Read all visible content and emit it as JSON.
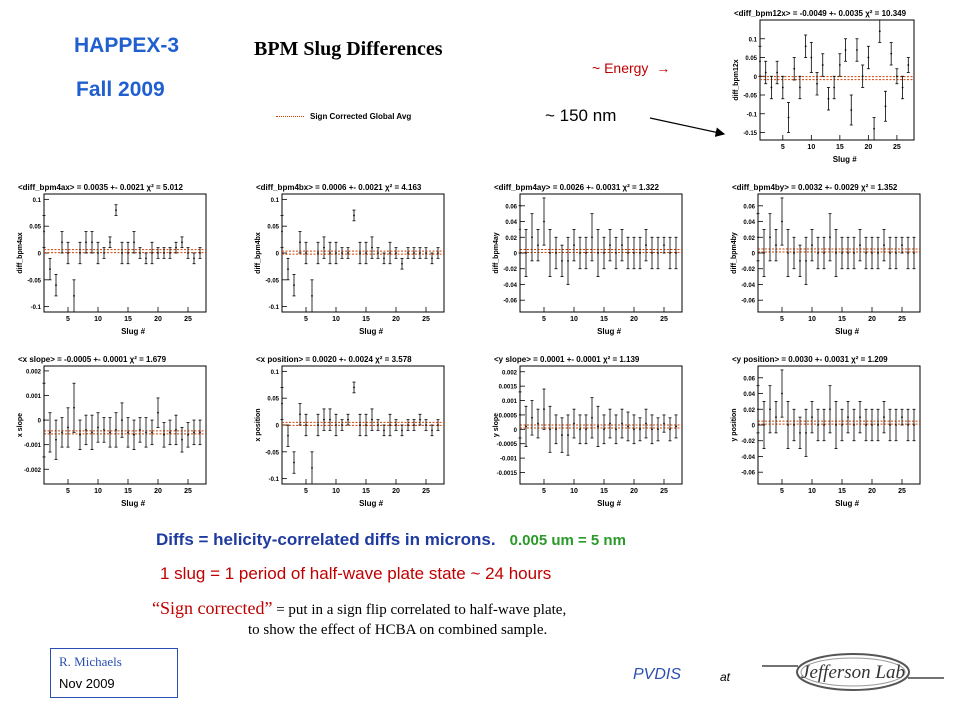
{
  "header": {
    "title": "HAPPEX-3",
    "season": "Fall   2009",
    "main_title": "BPM Slug Differences"
  },
  "annotations": {
    "energy": "~ Energy",
    "energy_arrow": "→",
    "nm": "~ 150 nm",
    "legend_label": "Sign Corrected Global Avg"
  },
  "notes": {
    "diffs": "Diffs =  helicity-correlated  diffs  in  microns.",
    "unit": "0.005 um  =  5 nm",
    "slug": "1 slug  =  1 period of half-wave plate state  ~  24 hours",
    "sign_quote": "“Sign corrected”",
    "sign_rest": "  =  put in a sign flip  correlated to half-wave plate,",
    "sign_line2": "to show  the  effect  of  HCBA  on  combined  sample."
  },
  "footer": {
    "author": "R.  Michaels",
    "date": "Nov 2009",
    "pvdis": "PVDIS",
    "at": "at",
    "logo_text": "Jefferson Lab"
  },
  "colors": {
    "header_blue": "#1f5fd0",
    "avg_line": "#d04000",
    "note_red": "#c00000",
    "note_green": "#2a9a2a"
  },
  "chart_data": [
    {
      "type": "scatter",
      "title": "<diff_bpm12x> = -0.0049 +- 0.0035   χ² = 10.349",
      "xlabel": "Slug #",
      "ylabel": "diff_bpm12x",
      "xticks": [
        5,
        10,
        15,
        20,
        25
      ],
      "yticks": [
        "0.1",
        "0.05",
        "0",
        "-0.05",
        "-0.1",
        "-0.15"
      ],
      "ytick_values": [
        0.1,
        0.05,
        0,
        -0.05,
        -0.1,
        -0.15
      ],
      "xlim": [
        1,
        28
      ],
      "ylim": [
        -0.17,
        0.15
      ],
      "avg": -0.0049,
      "x": [
        1,
        2,
        3,
        4,
        5,
        6,
        7,
        8,
        9,
        10,
        11,
        12,
        13,
        14,
        15,
        16,
        17,
        18,
        19,
        20,
        21,
        22,
        23,
        24,
        25,
        26,
        27
      ],
      "y": [
        0.04,
        0.01,
        -0.03,
        0.01,
        -0.03,
        -0.11,
        0.02,
        -0.03,
        0.08,
        0.05,
        -0.02,
        0.03,
        -0.06,
        -0.03,
        0.03,
        0.07,
        -0.09,
        0.07,
        0.0,
        0.05,
        -0.14,
        0.12,
        -0.08,
        0.06,
        0.0,
        -0.03,
        0.03
      ],
      "err": [
        0.04,
        0.03,
        0.03,
        0.03,
        0.03,
        0.04,
        0.03,
        0.03,
        0.03,
        0.04,
        0.03,
        0.03,
        0.03,
        0.03,
        0.03,
        0.03,
        0.04,
        0.03,
        0.03,
        0.03,
        0.03,
        0.03,
        0.04,
        0.03,
        0.02,
        0.03,
        0.02
      ]
    },
    {
      "type": "scatter",
      "title": "<diff_bpm4ax> = 0.0035 +- 0.0021   χ² = 5.012",
      "xlabel": "Slug #",
      "ylabel": "diff_bpm4ax",
      "xticks": [
        5,
        10,
        15,
        20,
        25
      ],
      "yticks": [
        "0.1",
        "0.05",
        "0",
        "-0.05",
        "-0.1"
      ],
      "ytick_values": [
        0.1,
        0.05,
        0,
        -0.05,
        -0.1
      ],
      "xlim": [
        1,
        28
      ],
      "ylim": [
        -0.11,
        0.11
      ],
      "avg": 0.0035,
      "x": [
        1,
        2,
        3,
        4,
        5,
        6,
        7,
        8,
        9,
        10,
        11,
        12,
        13,
        14,
        15,
        16,
        17,
        18,
        19,
        20,
        21,
        22,
        23,
        24,
        25,
        26,
        27
      ],
      "y": [
        0.04,
        -0.03,
        -0.06,
        0.02,
        0.0,
        -0.08,
        0.0,
        0.02,
        0.02,
        0.0,
        0.0,
        0.02,
        0.08,
        0.0,
        0.0,
        0.02,
        0.0,
        -0.01,
        0.0,
        0.0,
        0.0,
        0.0,
        0.01,
        0.02,
        0.0,
        -0.01,
        0.0
      ],
      "err": [
        0.03,
        0.02,
        0.02,
        0.02,
        0.02,
        0.03,
        0.02,
        0.02,
        0.02,
        0.02,
        0.01,
        0.01,
        0.01,
        0.02,
        0.02,
        0.02,
        0.01,
        0.01,
        0.02,
        0.01,
        0.01,
        0.01,
        0.01,
        0.01,
        0.01,
        0.01,
        0.01
      ]
    },
    {
      "type": "scatter",
      "title": "<diff_bpm4bx> = 0.0006 +- 0.0021   χ² = 4.163",
      "xlabel": "Slug #",
      "ylabel": "diff_bpm4bx",
      "xticks": [
        5,
        10,
        15,
        20,
        25
      ],
      "yticks": [
        "0.1",
        "0.05",
        "0",
        "-0.05",
        "-0.1"
      ],
      "ytick_values": [
        0.1,
        0.05,
        0,
        -0.05,
        -0.1
      ],
      "xlim": [
        1,
        28
      ],
      "ylim": [
        -0.11,
        0.11
      ],
      "avg": 0.0006,
      "x": [
        1,
        2,
        3,
        4,
        5,
        6,
        7,
        8,
        9,
        10,
        11,
        12,
        13,
        14,
        15,
        16,
        17,
        18,
        19,
        20,
        21,
        22,
        23,
        24,
        25,
        26,
        27
      ],
      "y": [
        0.04,
        -0.03,
        -0.06,
        0.02,
        0.0,
        -0.08,
        0.0,
        0.01,
        0.0,
        0.0,
        0.0,
        0.0,
        0.07,
        0.0,
        0.0,
        0.01,
        0.0,
        -0.01,
        0.0,
        0.0,
        -0.02,
        0.0,
        0.0,
        0.0,
        0.0,
        -0.01,
        0.0
      ],
      "err": [
        0.03,
        0.02,
        0.02,
        0.02,
        0.02,
        0.03,
        0.02,
        0.02,
        0.02,
        0.02,
        0.01,
        0.01,
        0.01,
        0.02,
        0.02,
        0.02,
        0.01,
        0.01,
        0.02,
        0.01,
        0.01,
        0.01,
        0.01,
        0.01,
        0.01,
        0.01,
        0.01
      ]
    },
    {
      "type": "scatter",
      "title": "<diff_bpm4ay> = 0.0026 +- 0.0031   χ² = 1.322",
      "xlabel": "Slug #",
      "ylabel": "diff_bpm4ay",
      "xticks": [
        5,
        10,
        15,
        20,
        25
      ],
      "yticks": [
        "0.06",
        "0.04",
        "0.02",
        "0",
        "-0.02",
        "-0.04",
        "-0.06"
      ],
      "ytick_values": [
        0.06,
        0.04,
        0.02,
        0,
        -0.02,
        -0.04,
        -0.06
      ],
      "xlim": [
        1,
        28
      ],
      "ylim": [
        -0.075,
        0.075
      ],
      "avg": 0.0026,
      "x": [
        1,
        2,
        3,
        4,
        5,
        6,
        7,
        8,
        9,
        10,
        11,
        12,
        13,
        14,
        15,
        16,
        17,
        18,
        19,
        20,
        21,
        22,
        23,
        24,
        25,
        26,
        27
      ],
      "y": [
        0.03,
        0.0,
        0.02,
        0.01,
        0.04,
        0.0,
        0.0,
        -0.01,
        -0.01,
        0.01,
        0.0,
        0.0,
        0.02,
        0.0,
        0.0,
        0.01,
        0.0,
        0.01,
        0.0,
        0.0,
        0.0,
        0.01,
        0.0,
        0.0,
        0.01,
        0.0,
        0.0
      ],
      "err": [
        0.03,
        0.03,
        0.03,
        0.02,
        0.03,
        0.03,
        0.02,
        0.02,
        0.03,
        0.02,
        0.02,
        0.02,
        0.03,
        0.03,
        0.02,
        0.02,
        0.02,
        0.02,
        0.02,
        0.02,
        0.02,
        0.02,
        0.02,
        0.02,
        0.01,
        0.02,
        0.02
      ]
    },
    {
      "type": "scatter",
      "title": "<diff_bpm4by> = 0.0032 +- 0.0029   χ² = 1.352",
      "xlabel": "Slug #",
      "ylabel": "diff_bpm4by",
      "xticks": [
        5,
        10,
        15,
        20,
        25
      ],
      "yticks": [
        "0.06",
        "0.04",
        "0.02",
        "0",
        "-0.02",
        "-0.04",
        "-0.06"
      ],
      "ytick_values": [
        0.06,
        0.04,
        0.02,
        0,
        -0.02,
        -0.04,
        -0.06
      ],
      "xlim": [
        1,
        28
      ],
      "ylim": [
        -0.075,
        0.075
      ],
      "avg": 0.0032,
      "x": [
        1,
        2,
        3,
        4,
        5,
        6,
        7,
        8,
        9,
        10,
        11,
        12,
        13,
        14,
        15,
        16,
        17,
        18,
        19,
        20,
        21,
        22,
        23,
        24,
        25,
        26,
        27
      ],
      "y": [
        0.02,
        0.0,
        0.02,
        0.01,
        0.04,
        0.0,
        0.0,
        -0.01,
        -0.01,
        0.01,
        0.0,
        0.0,
        0.02,
        0.0,
        0.0,
        0.0,
        0.0,
        0.01,
        0.0,
        0.0,
        0.0,
        0.01,
        0.0,
        0.0,
        0.01,
        0.0,
        0.0
      ],
      "err": [
        0.03,
        0.03,
        0.03,
        0.02,
        0.03,
        0.03,
        0.02,
        0.02,
        0.03,
        0.02,
        0.02,
        0.02,
        0.03,
        0.03,
        0.02,
        0.02,
        0.02,
        0.02,
        0.02,
        0.02,
        0.02,
        0.02,
        0.02,
        0.02,
        0.01,
        0.02,
        0.02
      ]
    },
    {
      "type": "scatter",
      "title": "<x slope> = -0.0005 +- 0.0001   χ² = 1.679",
      "xlabel": "Slug #",
      "ylabel": "x slope",
      "xticks": [
        5,
        10,
        15,
        20,
        25
      ],
      "yticks": [
        "0.002",
        "0.001",
        "0",
        "-0.001",
        "-0.002"
      ],
      "ytick_values": [
        0.002,
        0.001,
        0,
        -0.001,
        -0.002
      ],
      "xlim": [
        1,
        28
      ],
      "ylim": [
        -0.0026,
        0.0022
      ],
      "avg": -0.0005,
      "x": [
        1,
        2,
        3,
        4,
        5,
        6,
        7,
        8,
        9,
        10,
        11,
        12,
        13,
        14,
        15,
        16,
        17,
        18,
        19,
        20,
        21,
        22,
        23,
        24,
        25,
        26,
        27
      ],
      "y": [
        0.0,
        -0.0005,
        -0.0008,
        -0.0005,
        -0.0003,
        0.0005,
        -0.0006,
        -0.0004,
        -0.0005,
        -0.0003,
        -0.0004,
        -0.0005,
        -0.0004,
        0.0,
        -0.0005,
        -0.0006,
        -0.0004,
        -0.0005,
        -0.0005,
        0.0003,
        -0.0006,
        -0.0005,
        -0.0004,
        -0.0008,
        -0.0006,
        -0.0005,
        -0.0005
      ],
      "err": [
        0.0015,
        0.0008,
        0.0008,
        0.0006,
        0.0008,
        0.001,
        0.0006,
        0.0006,
        0.0007,
        0.0006,
        0.0005,
        0.0006,
        0.0007,
        0.0007,
        0.0006,
        0.0006,
        0.0005,
        0.0006,
        0.0005,
        0.0006,
        0.0005,
        0.0005,
        0.0006,
        0.0005,
        0.0005,
        0.0005,
        0.0005
      ]
    },
    {
      "type": "scatter",
      "title": "<x position> = 0.0020 +- 0.0024   χ² = 3.578",
      "xlabel": "Slug #",
      "ylabel": "x position",
      "xticks": [
        5,
        10,
        15,
        20,
        25
      ],
      "yticks": [
        "0.1",
        "0.05",
        "0",
        "-0.05",
        "-0.1"
      ],
      "ytick_values": [
        0.1,
        0.05,
        0,
        -0.05,
        -0.1
      ],
      "xlim": [
        1,
        28
      ],
      "ylim": [
        -0.11,
        0.11
      ],
      "avg": 0.002,
      "x": [
        1,
        2,
        3,
        4,
        5,
        6,
        7,
        8,
        9,
        10,
        11,
        12,
        13,
        14,
        15,
        16,
        17,
        18,
        19,
        20,
        21,
        22,
        23,
        24,
        25,
        26,
        27
      ],
      "y": [
        0.04,
        -0.02,
        -0.07,
        0.02,
        0.0,
        -0.08,
        0.0,
        0.01,
        0.01,
        0.0,
        0.0,
        0.01,
        0.07,
        0.0,
        0.0,
        0.01,
        0.0,
        -0.01,
        0.0,
        0.0,
        -0.01,
        0.0,
        0.0,
        0.01,
        0.0,
        -0.01,
        0.0
      ],
      "err": [
        0.03,
        0.02,
        0.02,
        0.02,
        0.02,
        0.03,
        0.02,
        0.02,
        0.02,
        0.02,
        0.01,
        0.01,
        0.01,
        0.02,
        0.02,
        0.02,
        0.01,
        0.01,
        0.02,
        0.01,
        0.01,
        0.01,
        0.01,
        0.01,
        0.01,
        0.01,
        0.01
      ]
    },
    {
      "type": "scatter",
      "title": "<y slope> = 0.0001 +- 0.0001   χ² = 1.139",
      "xlabel": "Slug #",
      "ylabel": "y slope",
      "xticks": [
        5,
        10,
        15,
        20,
        25
      ],
      "yticks": [
        "0.002",
        "0.0015",
        "0.001",
        "0.0005",
        "0",
        "-0.0005",
        "-0.001",
        "-0.0015"
      ],
      "ytick_values": [
        0.002,
        0.0015,
        0.001,
        0.0005,
        0,
        -0.0005,
        -0.001,
        -0.0015
      ],
      "xlim": [
        1,
        28
      ],
      "ylim": [
        -0.0019,
        0.0022
      ],
      "avg": 0.0001,
      "x": [
        1,
        2,
        3,
        4,
        5,
        6,
        7,
        8,
        9,
        10,
        11,
        12,
        13,
        14,
        15,
        16,
        17,
        18,
        19,
        20,
        21,
        22,
        23,
        24,
        25,
        26,
        27
      ],
      "y": [
        0.0005,
        0.0001,
        0.0004,
        0.0002,
        0.0007,
        0.0,
        0.0,
        -0.0002,
        -0.0002,
        0.0002,
        0.0,
        0.0,
        0.0004,
        0.0001,
        0.0,
        0.0002,
        0.0,
        0.0002,
        0.0001,
        0.0,
        0.0,
        0.0002,
        0.0,
        0.0,
        0.0002,
        0.0,
        0.0001
      ],
      "err": [
        0.0008,
        0.0007,
        0.0006,
        0.0005,
        0.0007,
        0.0008,
        0.0005,
        0.0006,
        0.0007,
        0.0005,
        0.0005,
        0.0005,
        0.0007,
        0.0007,
        0.0005,
        0.0005,
        0.0005,
        0.0005,
        0.0005,
        0.0005,
        0.0004,
        0.0005,
        0.0005,
        0.0004,
        0.0003,
        0.0004,
        0.0004
      ]
    },
    {
      "type": "scatter",
      "title": "<y position> = 0.0030 +- 0.0031   χ² = 1.209",
      "xlabel": "Slug #",
      "ylabel": "y position",
      "xticks": [
        5,
        10,
        15,
        20,
        25
      ],
      "yticks": [
        "0.06",
        "0.04",
        "0.02",
        "0",
        "-0.02",
        "-0.04",
        "-0.06"
      ],
      "ytick_values": [
        0.06,
        0.04,
        0.02,
        0,
        -0.02,
        -0.04,
        -0.06
      ],
      "xlim": [
        1,
        28
      ],
      "ylim": [
        -0.075,
        0.075
      ],
      "avg": 0.003,
      "x": [
        1,
        2,
        3,
        4,
        5,
        6,
        7,
        8,
        9,
        10,
        11,
        12,
        13,
        14,
        15,
        16,
        17,
        18,
        19,
        20,
        21,
        22,
        23,
        24,
        25,
        26,
        27
      ],
      "y": [
        0.02,
        0.0,
        0.02,
        0.01,
        0.04,
        0.0,
        0.0,
        -0.01,
        -0.01,
        0.01,
        0.0,
        0.0,
        0.02,
        0.0,
        0.0,
        0.01,
        0.0,
        0.01,
        0.0,
        0.0,
        0.0,
        0.01,
        0.0,
        0.0,
        0.01,
        0.0,
        0.0
      ],
      "err": [
        0.03,
        0.03,
        0.03,
        0.02,
        0.03,
        0.03,
        0.02,
        0.02,
        0.03,
        0.02,
        0.02,
        0.02,
        0.03,
        0.03,
        0.02,
        0.02,
        0.02,
        0.02,
        0.02,
        0.02,
        0.02,
        0.02,
        0.02,
        0.02,
        0.01,
        0.02,
        0.02
      ]
    }
  ]
}
